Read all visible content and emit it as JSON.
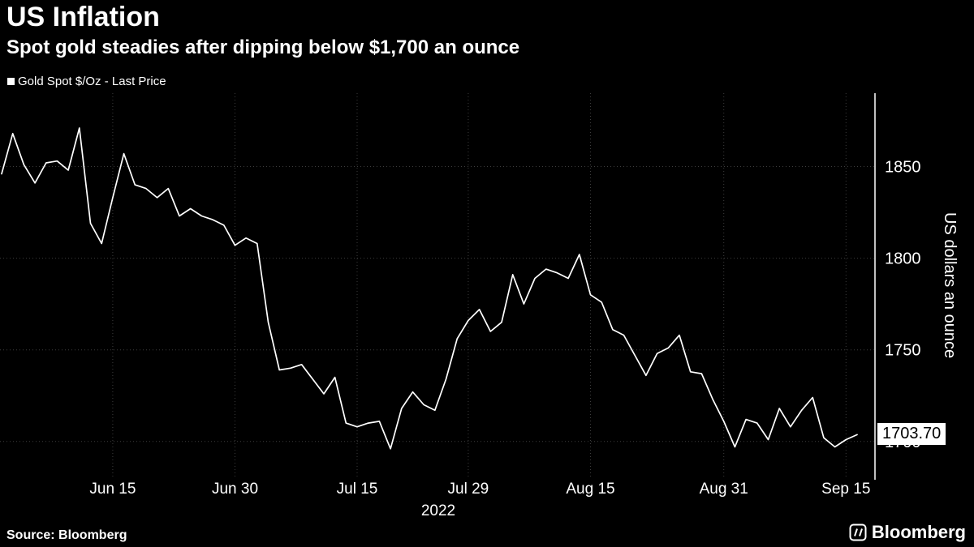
{
  "header": {
    "title": "US Inflation",
    "subtitle": "Spot gold steadies after dipping below $1,700 an ounce"
  },
  "legend": {
    "label": "Gold Spot $/Oz - Last Price"
  },
  "chart_data": {
    "type": "line",
    "title": "US Inflation",
    "subtitle": "Spot gold steadies after dipping below $1,700 an ounce",
    "series": [
      {
        "name": "Gold Spot $/Oz - Last Price",
        "color": "#ffffff"
      }
    ],
    "ylabel": "US dollars an ounce",
    "ylim": [
      1680,
      1890
    ],
    "yticks": [
      1850,
      1800,
      1750,
      1700
    ],
    "year_label": "2022",
    "last_price_label": "1703.70",
    "grid": true,
    "legend_position": "top-left",
    "background_color": "#000000",
    "line_color": "#ffffff",
    "grid_color": "#3d3d3d",
    "x": [
      "2022-06-01",
      "2022-06-02",
      "2022-06-03",
      "2022-06-06",
      "2022-06-07",
      "2022-06-08",
      "2022-06-09",
      "2022-06-10",
      "2022-06-13",
      "2022-06-14",
      "2022-06-15",
      "2022-06-16",
      "2022-06-17",
      "2022-06-20",
      "2022-06-21",
      "2022-06-22",
      "2022-06-23",
      "2022-06-24",
      "2022-06-27",
      "2022-06-28",
      "2022-06-29",
      "2022-06-30",
      "2022-07-01",
      "2022-07-04",
      "2022-07-05",
      "2022-07-06",
      "2022-07-07",
      "2022-07-08",
      "2022-07-11",
      "2022-07-12",
      "2022-07-13",
      "2022-07-14",
      "2022-07-15",
      "2022-07-18",
      "2022-07-19",
      "2022-07-20",
      "2022-07-21",
      "2022-07-22",
      "2022-07-25",
      "2022-07-26",
      "2022-07-27",
      "2022-07-28",
      "2022-07-29",
      "2022-08-01",
      "2022-08-02",
      "2022-08-03",
      "2022-08-04",
      "2022-08-05",
      "2022-08-08",
      "2022-08-09",
      "2022-08-10",
      "2022-08-11",
      "2022-08-12",
      "2022-08-15",
      "2022-08-16",
      "2022-08-17",
      "2022-08-18",
      "2022-08-19",
      "2022-08-22",
      "2022-08-23",
      "2022-08-24",
      "2022-08-25",
      "2022-08-26",
      "2022-08-29",
      "2022-08-30",
      "2022-08-31",
      "2022-09-01",
      "2022-09-02",
      "2022-09-05",
      "2022-09-06",
      "2022-09-07",
      "2022-09-08",
      "2022-09-09",
      "2022-09-12",
      "2022-09-13",
      "2022-09-14",
      "2022-09-15",
      "2022-09-16"
    ],
    "values": [
      1846,
      1868,
      1851,
      1841,
      1852,
      1853,
      1848,
      1871,
      1819,
      1808,
      1833,
      1857,
      1840,
      1838,
      1833,
      1838,
      1823,
      1827,
      1823,
      1821,
      1818,
      1807,
      1811,
      1808,
      1765,
      1739,
      1740,
      1742,
      1734,
      1726,
      1735,
      1710,
      1708,
      1710,
      1711,
      1696,
      1718,
      1727,
      1720,
      1717,
      1734,
      1756,
      1766,
      1772,
      1760,
      1765,
      1791,
      1775,
      1789,
      1794,
      1792,
      1789,
      1802,
      1780,
      1776,
      1761,
      1758,
      1747,
      1736,
      1748,
      1751,
      1758,
      1738,
      1737,
      1723,
      1711,
      1697,
      1712,
      1710,
      1701,
      1718,
      1708,
      1717,
      1724,
      1702,
      1697,
      1701,
      1703.7
    ],
    "xticks": [
      {
        "date": "2022-06-15",
        "label": "Jun 15"
      },
      {
        "date": "2022-06-30",
        "label": "Jun 30"
      },
      {
        "date": "2022-07-15",
        "label": "Jul 15"
      },
      {
        "date": "2022-07-29",
        "label": "Jul 29"
      },
      {
        "date": "2022-08-15",
        "label": "Aug 15"
      },
      {
        "date": "2022-08-31",
        "label": "Aug 31"
      },
      {
        "date": "2022-09-15",
        "label": "Sep 15"
      }
    ]
  },
  "footer": {
    "source": "Source: Bloomberg",
    "logo_text": "Bloomberg"
  }
}
